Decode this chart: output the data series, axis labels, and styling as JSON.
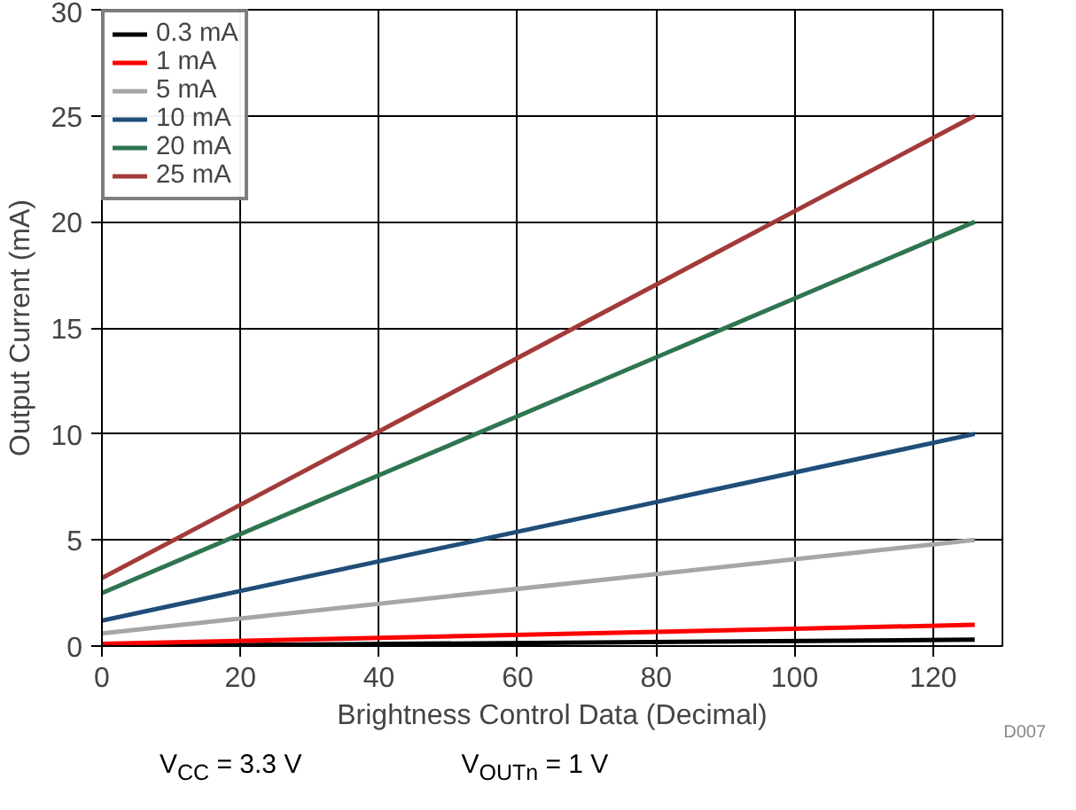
{
  "chart_data": {
    "type": "line",
    "xlabel": "Brightness Control Data (Decimal)",
    "ylabel": "Output Current (mA)",
    "x": [
      0,
      126
    ],
    "series": [
      {
        "name": "0.3 mA",
        "color": "#000000",
        "values": [
          0.0,
          0.3
        ]
      },
      {
        "name": "1 mA",
        "color": "#ff0000",
        "values": [
          0.1,
          1
        ]
      },
      {
        "name": "5 mA",
        "color": "#a6a6a6",
        "values": [
          0.6,
          5
        ]
      },
      {
        "name": "10 mA",
        "color": "#1f4e79",
        "values": [
          1.2,
          10
        ]
      },
      {
        "name": "20 mA",
        "color": "#2e7550",
        "values": [
          2.5,
          20
        ]
      },
      {
        "name": "25 mA",
        "color": "#a33a3a",
        "values": [
          3.2,
          25
        ]
      }
    ],
    "xlim": [
      0,
      130
    ],
    "ylim": [
      0,
      30
    ],
    "xticks": [
      0,
      20,
      40,
      60,
      80,
      100,
      120
    ],
    "yticks": [
      0,
      5,
      10,
      15,
      20,
      25,
      30
    ],
    "grid": true,
    "legend": "top left",
    "marker": "none",
    "line_style": "solid",
    "annotations": [
      "D007",
      "V$_{CC}$ = 3.3 V",
      "V$_{OUTn}$ = 1 V"
    ]
  }
}
